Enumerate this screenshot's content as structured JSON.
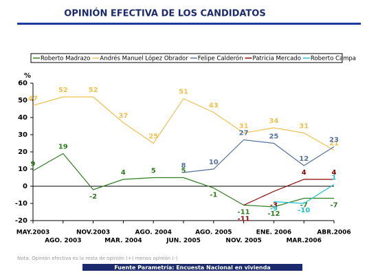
{
  "chart_data": {
    "type": "line",
    "title": "OPINIÓN EFECTIVA DE LOS CANDIDATOS",
    "y_label": "%",
    "categories": [
      "MAY.2003",
      "AGO. 2003",
      "NOV.2003",
      "MAR. 2004",
      "AGO. 2004",
      "JUN. 2005",
      "AGO. 2005",
      "NOV. 2005",
      "ENE. 2006",
      "MAR.2006",
      "ABR.2006"
    ],
    "series": [
      {
        "name": "Roberto Madrazo",
        "color": "#2e7d1e",
        "values": [
          9,
          19,
          -2,
          4,
          5,
          5,
          -1,
          -11,
          -12,
          -7,
          -7
        ]
      },
      {
        "name": "Andrés Manuel López Obrador",
        "color": "#f0c050",
        "values": [
          47,
          52,
          52,
          37,
          25,
          51,
          43,
          31,
          34,
          31,
          21
        ]
      },
      {
        "name": "Felipe Calderón",
        "color": "#5470a0",
        "values": [
          null,
          null,
          null,
          null,
          null,
          8,
          10,
          27,
          25,
          12,
          23
        ]
      },
      {
        "name": "Patricia Mercado",
        "color": "#8b0000",
        "values": [
          null,
          null,
          null,
          null,
          null,
          null,
          null,
          -11,
          -3,
          4,
          4
        ]
      },
      {
        "name": "Roberto Campa",
        "color": "#20c0d0",
        "values": [
          null,
          null,
          null,
          null,
          null,
          null,
          null,
          null,
          -9,
          -10,
          1
        ]
      }
    ],
    "ylim": [
      -20,
      60
    ],
    "yticks": [
      -20,
      -10,
      0,
      10,
      20,
      30,
      40,
      50,
      60
    ],
    "note": "Nota: Opinión efectiva es la resta de opinión (+) menos opinión (-)",
    "source": "Fuente Parametría: Encuesta Nacional en vivienda"
  }
}
